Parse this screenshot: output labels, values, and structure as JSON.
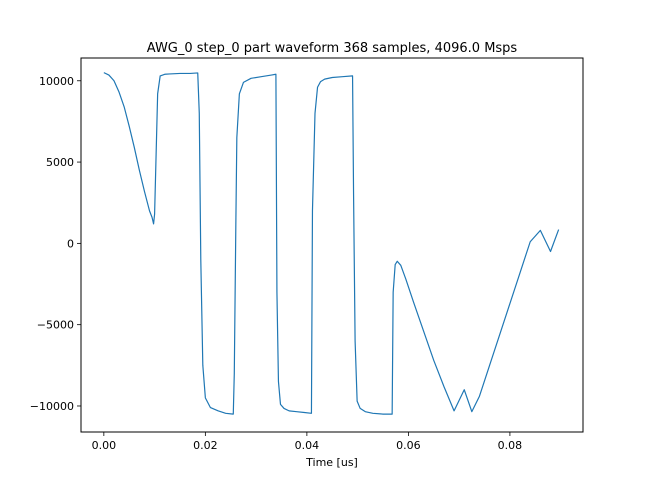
{
  "chart_data": {
    "type": "line",
    "title": "AWG_0 step_0 part waveform 368 samples, 4096.0 Msps",
    "xlabel": "Time [us]",
    "ylabel": "",
    "xlim": [
      -0.0045,
      0.0944
    ],
    "ylim": [
      -11600,
      11400
    ],
    "grid": false,
    "legend": "none",
    "x_ticks": [
      0.0,
      0.02,
      0.04,
      0.06,
      0.08
    ],
    "x_tick_labels": [
      "0.00",
      "0.02",
      "0.04",
      "0.06",
      "0.08"
    ],
    "y_ticks": [
      10000,
      5000,
      0,
      -5000,
      -10000
    ],
    "y_tick_labels": [
      "10000",
      "5000",
      "0",
      "−5000",
      "−10000"
    ],
    "line_color": "#1f77b4",
    "series": [
      {
        "x": [
          0.0,
          0.001,
          0.002,
          0.003,
          0.004,
          0.005,
          0.006,
          0.007,
          0.008,
          0.009,
          0.0095,
          0.0098,
          0.01,
          0.0103,
          0.0106,
          0.0111,
          0.012,
          0.013,
          0.015,
          0.017,
          0.0185,
          0.0188,
          0.0191,
          0.0195,
          0.02,
          0.021,
          0.0225,
          0.024,
          0.0255,
          0.0257,
          0.026,
          0.0262,
          0.0267,
          0.0275,
          0.029,
          0.031,
          0.033,
          0.0339,
          0.0341,
          0.0344,
          0.0348,
          0.0355,
          0.0365,
          0.038,
          0.0395,
          0.0409,
          0.0411,
          0.0416,
          0.0421,
          0.0427,
          0.0435,
          0.045,
          0.047,
          0.049,
          0.0492,
          0.0495,
          0.0499,
          0.0505,
          0.0515,
          0.053,
          0.055,
          0.0568,
          0.057,
          0.0574,
          0.0578,
          0.0585,
          0.0595,
          0.061,
          0.063,
          0.065,
          0.067,
          0.069,
          0.071,
          0.0725,
          0.074,
          0.076,
          0.078,
          0.08,
          0.082,
          0.084,
          0.086,
          0.088,
          0.0896
        ],
        "y": [
          10500,
          10350,
          10000,
          9300,
          8400,
          7200,
          5900,
          4500,
          3200,
          2000,
          1600,
          1200,
          1800,
          5500,
          9200,
          10300,
          10400,
          10420,
          10450,
          10450,
          10480,
          8000,
          -1000,
          -7500,
          -9500,
          -10100,
          -10300,
          -10450,
          -10500,
          -8000,
          1000,
          6500,
          9200,
          9900,
          10150,
          10250,
          10350,
          10400,
          -3000,
          -8500,
          -9900,
          -10150,
          -10300,
          -10350,
          -10400,
          -10450,
          2000,
          8000,
          9600,
          9950,
          10100,
          10200,
          10250,
          10300,
          3000,
          -6000,
          -9700,
          -10150,
          -10350,
          -10450,
          -10500,
          -10500,
          -3000,
          -1300,
          -1100,
          -1350,
          -2200,
          -3600,
          -5400,
          -7200,
          -8800,
          -10300,
          -9000,
          -10350,
          -9400,
          -7500,
          -5600,
          -3700,
          -1800,
          100,
          800,
          -500,
          850
        ]
      }
    ]
  }
}
